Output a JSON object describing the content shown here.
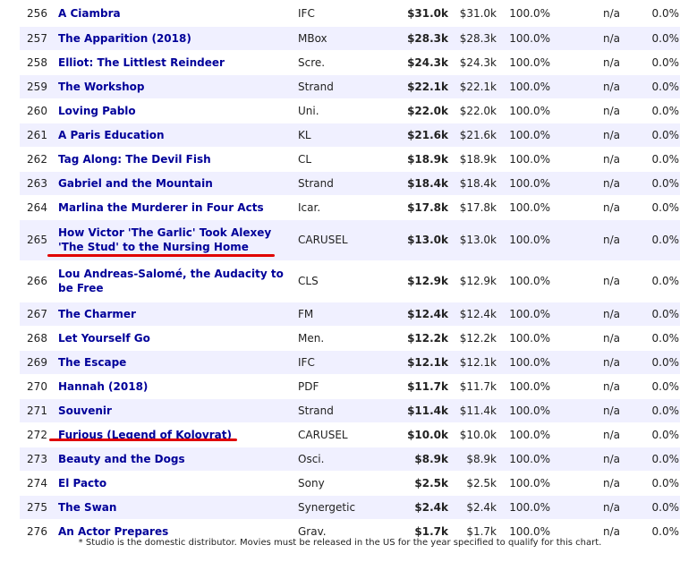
{
  "rows": [
    {
      "rank": "256",
      "title": "A Ciambra",
      "studio": "IFC",
      "gross": "$31.0k",
      "total": "$31.0k",
      "pct": "100.0%",
      "os": "n/a",
      "os_pct": "0.0%"
    },
    {
      "rank": "257",
      "title": "The Apparition (2018)",
      "studio": "MBox",
      "gross": "$28.3k",
      "total": "$28.3k",
      "pct": "100.0%",
      "os": "n/a",
      "os_pct": "0.0%"
    },
    {
      "rank": "258",
      "title": "Elliot: The Littlest Reindeer",
      "studio": "Scre.",
      "gross": "$24.3k",
      "total": "$24.3k",
      "pct": "100.0%",
      "os": "n/a",
      "os_pct": "0.0%"
    },
    {
      "rank": "259",
      "title": "The Workshop",
      "studio": "Strand",
      "gross": "$22.1k",
      "total": "$22.1k",
      "pct": "100.0%",
      "os": "n/a",
      "os_pct": "0.0%"
    },
    {
      "rank": "260",
      "title": "Loving Pablo",
      "studio": "Uni.",
      "gross": "$22.0k",
      "total": "$22.0k",
      "pct": "100.0%",
      "os": "n/a",
      "os_pct": "0.0%"
    },
    {
      "rank": "261",
      "title": "A Paris Education",
      "studio": "KL",
      "gross": "$21.6k",
      "total": "$21.6k",
      "pct": "100.0%",
      "os": "n/a",
      "os_pct": "0.0%"
    },
    {
      "rank": "262",
      "title": "Tag Along: The Devil Fish",
      "studio": "CL",
      "gross": "$18.9k",
      "total": "$18.9k",
      "pct": "100.0%",
      "os": "n/a",
      "os_pct": "0.0%"
    },
    {
      "rank": "263",
      "title": "Gabriel and the Mountain",
      "studio": "Strand",
      "gross": "$18.4k",
      "total": "$18.4k",
      "pct": "100.0%",
      "os": "n/a",
      "os_pct": "0.0%"
    },
    {
      "rank": "264",
      "title": "Marlina the Murderer in Four Acts",
      "studio": "Icar.",
      "gross": "$17.8k",
      "total": "$17.8k",
      "pct": "100.0%",
      "os": "n/a",
      "os_pct": "0.0%"
    },
    {
      "rank": "265",
      "title": "How Victor 'The Garlic' Took Alexey 'The Stud' to the Nursing Home",
      "studio": "CARUSEL",
      "gross": "$13.0k",
      "total": "$13.0k",
      "pct": "100.0%",
      "os": "n/a",
      "os_pct": "0.0%"
    },
    {
      "rank": "266",
      "title": "Lou Andreas-Salomé, the Audacity to be Free",
      "studio": "CLS",
      "gross": "$12.9k",
      "total": "$12.9k",
      "pct": "100.0%",
      "os": "n/a",
      "os_pct": "0.0%"
    },
    {
      "rank": "267",
      "title": "The Charmer",
      "studio": "FM",
      "gross": "$12.4k",
      "total": "$12.4k",
      "pct": "100.0%",
      "os": "n/a",
      "os_pct": "0.0%"
    },
    {
      "rank": "268",
      "title": "Let Yourself Go",
      "studio": "Men.",
      "gross": "$12.2k",
      "total": "$12.2k",
      "pct": "100.0%",
      "os": "n/a",
      "os_pct": "0.0%"
    },
    {
      "rank": "269",
      "title": "The Escape",
      "studio": "IFC",
      "gross": "$12.1k",
      "total": "$12.1k",
      "pct": "100.0%",
      "os": "n/a",
      "os_pct": "0.0%"
    },
    {
      "rank": "270",
      "title": "Hannah (2018)",
      "studio": "PDF",
      "gross": "$11.7k",
      "total": "$11.7k",
      "pct": "100.0%",
      "os": "n/a",
      "os_pct": "0.0%"
    },
    {
      "rank": "271",
      "title": "Souvenir",
      "studio": "Strand",
      "gross": "$11.4k",
      "total": "$11.4k",
      "pct": "100.0%",
      "os": "n/a",
      "os_pct": "0.0%"
    },
    {
      "rank": "272",
      "title": "Furious (Legend of Kolovrat)",
      "studio": "CARUSEL",
      "gross": "$10.0k",
      "total": "$10.0k",
      "pct": "100.0%",
      "os": "n/a",
      "os_pct": "0.0%"
    },
    {
      "rank": "273",
      "title": "Beauty and the Dogs",
      "studio": "Osci.",
      "gross": "$8.9k",
      "total": "$8.9k",
      "pct": "100.0%",
      "os": "n/a",
      "os_pct": "0.0%"
    },
    {
      "rank": "274",
      "title": "El Pacto",
      "studio": "Sony",
      "gross": "$2.5k",
      "total": "$2.5k",
      "pct": "100.0%",
      "os": "n/a",
      "os_pct": "0.0%"
    },
    {
      "rank": "275",
      "title": "The Swan",
      "studio": "Synergetic",
      "gross": "$2.4k",
      "total": "$2.4k",
      "pct": "100.0%",
      "os": "n/a",
      "os_pct": "0.0%"
    },
    {
      "rank": "276",
      "title": "An Actor Prepares",
      "studio": "Grav.",
      "gross": "$1.7k",
      "total": "$1.7k",
      "pct": "100.0%",
      "os": "n/a",
      "os_pct": "0.0%"
    }
  ],
  "footnote": "* Studio is the domestic distributor. Movies must be released in the US for the year specified to qualify for this chart.",
  "colors": {
    "link": "#000099",
    "row_alt": "#f0f0ff",
    "annotation": "#e00000"
  }
}
